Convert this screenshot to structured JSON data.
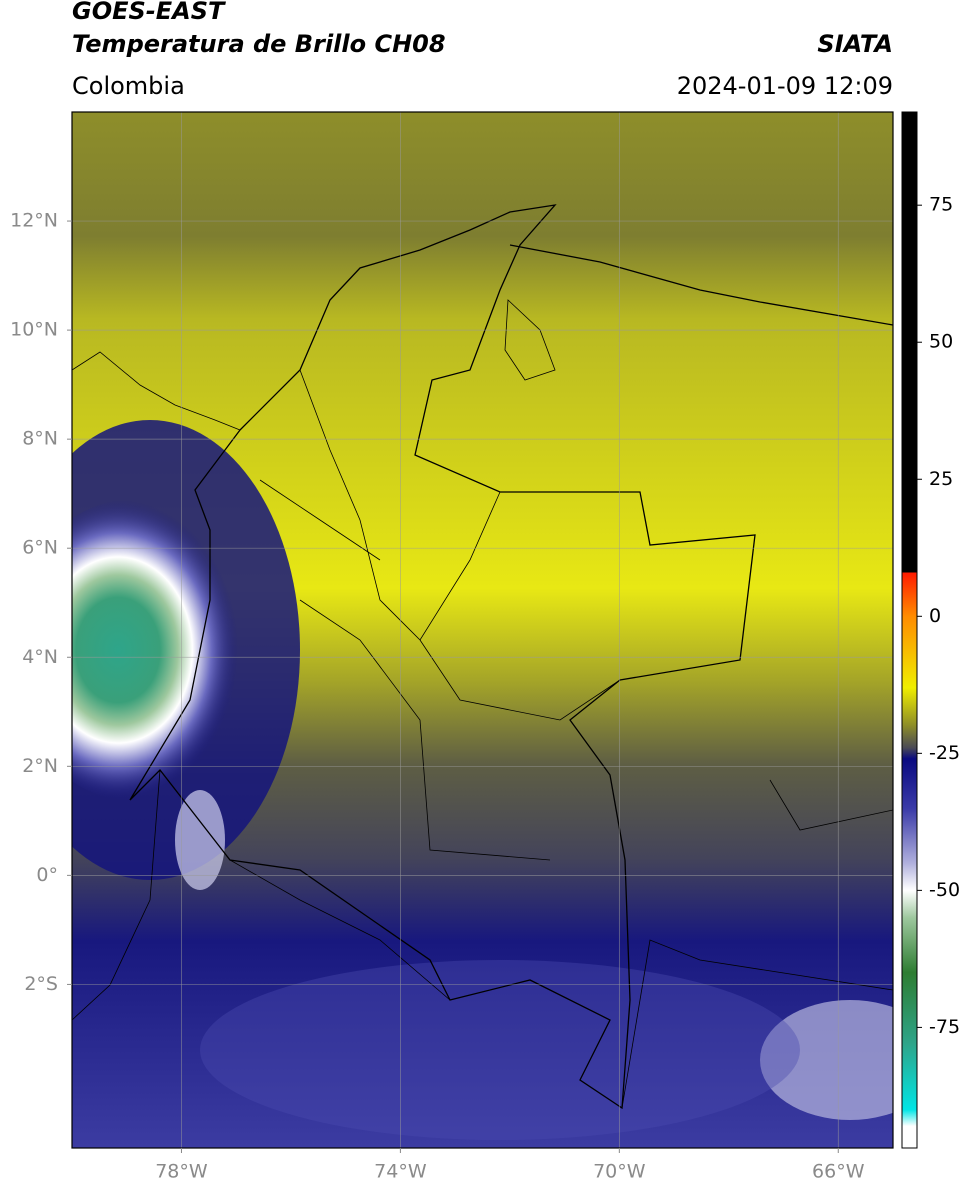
{
  "header": {
    "title": "GOES-EAST",
    "subtitle": "Temperatura de Brillo CH08",
    "source": "SIATA",
    "region": "Colombia",
    "datetime": "2024-01-09 12:09"
  },
  "map": {
    "xlim": [
      -80,
      -65
    ],
    "ylim": [
      -5,
      14
    ],
    "grid": true,
    "xticks": [
      {
        "value": -78,
        "label": "78°W"
      },
      {
        "value": -74,
        "label": "74°W"
      },
      {
        "value": -70,
        "label": "70°W"
      },
      {
        "value": -66,
        "label": "66°W"
      }
    ],
    "yticks": [
      {
        "value": 12,
        "label": "12°N"
      },
      {
        "value": 10,
        "label": "10°N"
      },
      {
        "value": 8,
        "label": "8°N"
      },
      {
        "value": 6,
        "label": "6°N"
      },
      {
        "value": 4,
        "label": "4°N"
      },
      {
        "value": 2,
        "label": "2°N"
      },
      {
        "value": 0,
        "label": "0°"
      },
      {
        "value": -2,
        "label": "2°S"
      }
    ]
  },
  "colorbar": {
    "clim": [
      -97,
      92
    ],
    "ticks": [
      75,
      50,
      25,
      0,
      -25,
      -50,
      -75
    ],
    "stops": [
      {
        "value": 92,
        "color": "#000000"
      },
      {
        "value": 8,
        "color": "#000000"
      },
      {
        "value": 8,
        "color": "#ff1a00"
      },
      {
        "value": 0,
        "color": "#ff8c00"
      },
      {
        "value": -13,
        "color": "#f0ee00"
      },
      {
        "value": -20,
        "color": "#8c8c28"
      },
      {
        "value": -24,
        "color": "#4a4a55"
      },
      {
        "value": -26,
        "color": "#0a0a80"
      },
      {
        "value": -35,
        "color": "#3a3aa8"
      },
      {
        "value": -45,
        "color": "#b0b0dd"
      },
      {
        "value": -50,
        "color": "#ffffff"
      },
      {
        "value": -55,
        "color": "#9ec89e"
      },
      {
        "value": -65,
        "color": "#2e7d32"
      },
      {
        "value": -78,
        "color": "#2ea58a"
      },
      {
        "value": -90,
        "color": "#00e5e5"
      },
      {
        "value": -93,
        "color": "#ffffff"
      },
      {
        "value": -97,
        "color": "#ffffff"
      }
    ]
  }
}
